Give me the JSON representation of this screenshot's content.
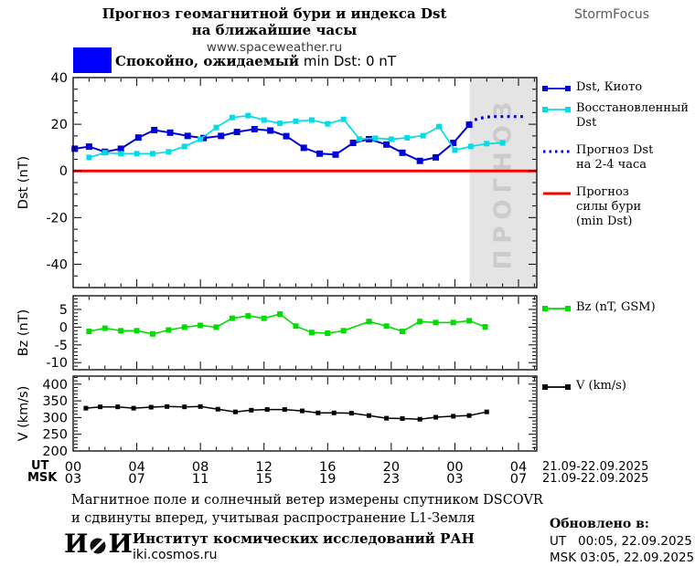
{
  "header": {
    "title_line1": "Прогноз геомагнитной бури и индекса Dst",
    "title_line2": "на ближайшие часы",
    "site": "www.spaceweather.ru",
    "brand": "StormFocus"
  },
  "status_banner": {
    "color": "#0000ff",
    "label_bold": "Спокойно, ожидаемый",
    "label_rest": "min Dst: 0 nT"
  },
  "legend": {
    "dst_kyoto": "Dst, Киото",
    "restored": "Восстановленный\nDst",
    "forecast": "Прогноз Dst\nна 2-4 часа",
    "storm": "Прогноз\nсилы бури\n(min Dst)",
    "bz": "Bz (nT, GSM)",
    "v": "V (km/s)"
  },
  "x_axis": {
    "ut_row_label": "UT",
    "msk_row_label": "MSK",
    "ut_labels": [
      "00",
      "04",
      "08",
      "12",
      "16",
      "20",
      "00",
      "04"
    ],
    "msk_labels": [
      "03",
      "07",
      "11",
      "15",
      "19",
      "23",
      "03",
      "07"
    ],
    "ut_date": "21.09-22.09.2025",
    "msk_date": "21.09-22.09.2025"
  },
  "footer": {
    "note_line1": "Магнитное поле и солнечный ветер измерены спутником DSCOVR",
    "note_line2": "и сдвинуты вперед, учитывая распространение L1-Земля",
    "logo_left": "И",
    "logo_right": "И",
    "institute": "Институт космических исследований РАН",
    "site": "iki.cosmos.ru",
    "updated_label": "Обновлено в:",
    "updated_ut": "UT   00:05, 22.09.2025",
    "updated_msk": "MSK 03:05, 22.09.2025"
  },
  "chart_data": {
    "type": "line",
    "title": "Прогноз геомагнитной бури и индекса Dst на ближайшие часы",
    "x_unit": "hours UT starting 00:00 21.09.2025",
    "xlim": [
      0,
      29.15
    ],
    "x_hours_major": [
      0,
      4,
      8,
      12,
      16,
      20,
      24,
      28
    ],
    "grid": false,
    "legend_position": "right",
    "panels": [
      {
        "name": "dst",
        "ylabel": "Dst (nT)",
        "ylim": [
          -50,
          40
        ],
        "yticks": [
          40,
          20,
          0,
          -20,
          -40
        ],
        "yminor_step": 5,
        "forecast_shading": {
          "from_h": 24.93,
          "label": "ПРОГНОЗ",
          "fill": "#e4e4e4",
          "label_color": "#cbcbcb"
        },
        "hline": {
          "name": "Прогноз силы бури (min Dst)",
          "value": 0,
          "color": "#ff0000"
        },
        "series": [
          {
            "name": "Dst, Киото",
            "color": "#0000d8",
            "marker_size": 7,
            "line_width": 2,
            "x": [
              0.1,
              1,
              2,
              3,
              4.1,
              5.1,
              6.1,
              7.2,
              8.2,
              9.3,
              10.3,
              11.4,
              12.4,
              13.4,
              14.5,
              15.5,
              16.5,
              17.6,
              18.6,
              19.7,
              20.7,
              21.8,
              22.8,
              23.9,
              24.9
            ],
            "values": [
              9.5,
              10.4,
              8.2,
              9.5,
              14.3,
              17.5,
              16.4,
              15,
              14.1,
              15,
              16.7,
              17.9,
              17.3,
              14.9,
              9.9,
              7.4,
              7,
              12,
              13.6,
              11.3,
              7.8,
              4.3,
              5.8,
              12,
              19.8
            ]
          },
          {
            "name": "Восстановленный Dst",
            "color": "#00dde6",
            "marker_size": 6,
            "line_width": 1.7,
            "x": [
              1,
              2,
              3,
              4,
              5,
              6,
              7,
              8,
              9,
              10,
              11,
              12,
              13,
              14,
              15,
              16,
              17,
              18,
              19,
              20,
              21,
              22,
              23,
              24,
              25,
              26,
              27
            ],
            "values": [
              5.8,
              7.8,
              7.4,
              7.4,
              7.4,
              8.2,
              10.5,
              13.6,
              18.6,
              22.9,
              23.7,
              21.8,
              20.4,
              21.3,
              21.8,
              20.2,
              22.1,
              13.7,
              14,
              13.6,
              14.2,
              15.1,
              19,
              8.9,
              10.5,
              11.7,
              12
            ]
          },
          {
            "name": "Прогноз Dst на 2-4 часа",
            "color": "#0000e0",
            "style": "dotted",
            "line_width": 3.2,
            "x": [
              24.9,
              25.2,
              25.6,
              26,
              26.4,
              26.9,
              27.4,
              27.9,
              28.3
            ],
            "values": [
              20.3,
              21.8,
              22.6,
              23.1,
              23.3,
              23.3,
              23.3,
              23.3,
              23.3
            ]
          }
        ]
      },
      {
        "name": "bz",
        "ylabel": "Bz (nT)",
        "ylim": [
          -12,
          8.85
        ],
        "yticks": [
          5,
          0,
          -5,
          -10
        ],
        "yminor_step": 1,
        "series": [
          {
            "name": "Bz (nT, GSM)",
            "color": "#00dd00",
            "marker_size": 6,
            "line_width": 1.6,
            "x": [
              1,
              2,
              3,
              4,
              5,
              6,
              7,
              8,
              9,
              10,
              11,
              12,
              13,
              14,
              15,
              16,
              17,
              18.6,
              19.7,
              20.7,
              21.8,
              22.8,
              23.9,
              24.9,
              25.9
            ],
            "values": [
              -1.2,
              -0.3,
              -1,
              -1,
              -1.9,
              -0.8,
              0,
              0.5,
              0,
              2.5,
              3.2,
              2.5,
              3.7,
              0.3,
              -1.5,
              -1.7,
              -1,
              1.6,
              0.3,
              -1.2,
              1.6,
              1.3,
              1.3,
              1.8,
              0.1
            ]
          }
        ]
      },
      {
        "name": "v",
        "ylabel": "V (km/s)",
        "ylim": [
          200,
          424
        ],
        "yticks": [
          400,
          350,
          300,
          250,
          200
        ],
        "yminor_step": 10,
        "series": [
          {
            "name": "V (km/s)",
            "color": "#000000",
            "marker_size": 5,
            "line_width": 1.5,
            "x": [
              0.8,
              1.7,
              2.8,
              3.8,
              4.9,
              5.9,
              7,
              8,
              9.1,
              10.2,
              11.2,
              12.2,
              13.3,
              14.4,
              15.4,
              16.4,
              17.5,
              18.6,
              19.7,
              20.7,
              21.8,
              22.8,
              23.9,
              24.9,
              26
            ],
            "values": [
              328,
              332,
              332,
              328,
              331,
              333,
              332,
              333,
              325,
              317,
              322,
              324,
              324,
              320,
              314,
              314,
              313,
              306,
              298,
              297,
              295,
              301,
              304,
              306,
              317
            ]
          }
        ]
      }
    ]
  }
}
